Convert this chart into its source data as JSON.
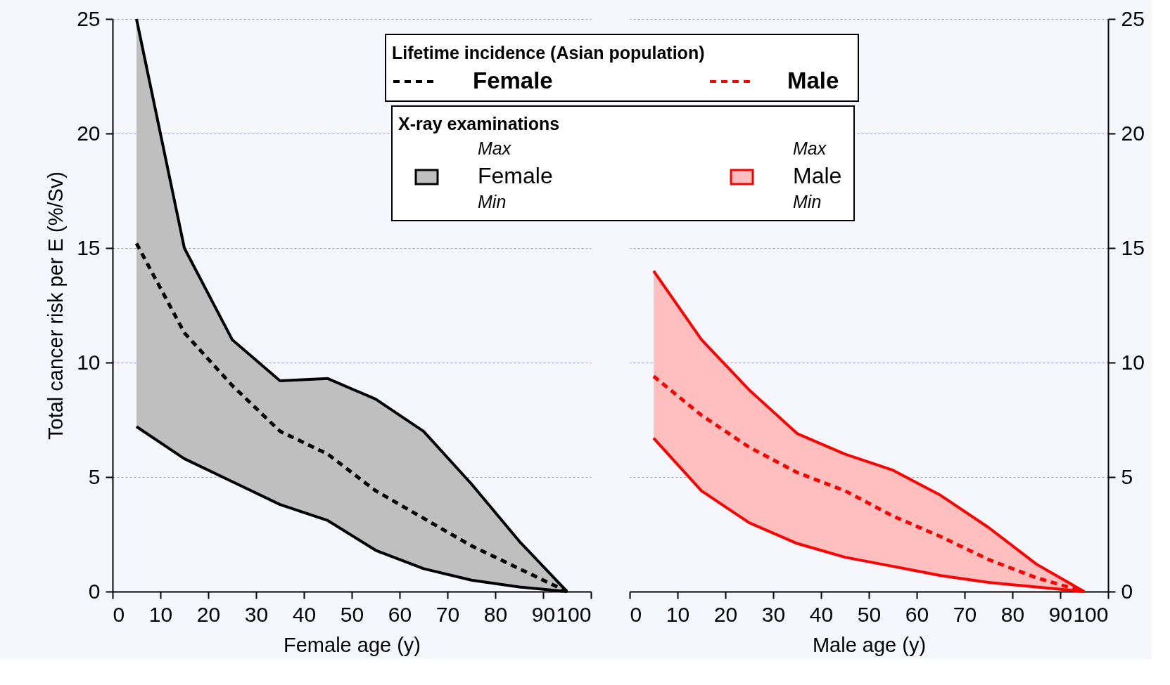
{
  "chart_data": [
    {
      "type": "line",
      "xlabel": "Female age (y)",
      "ylabel": "Total cancer risk per E (%/Sv)",
      "legend_title": "Lifetime incidence (Asian population)",
      "legend": "top",
      "grid": "y",
      "line_style": "dashed",
      "marker": "none",
      "x": [
        5,
        15,
        25,
        35,
        45,
        55,
        65,
        75,
        85,
        95
      ],
      "xlim": [
        0,
        100
      ],
      "xticks": [
        0,
        10,
        20,
        30,
        40,
        50,
        60,
        70,
        80,
        90,
        100
      ],
      "ylim": [
        0,
        25
      ],
      "yticks": [
        0,
        5,
        10,
        15,
        20,
        25
      ],
      "annotations": [
        "Max",
        "Min"
      ],
      "series": [
        {
          "name": "Female",
          "color": "#000000",
          "values": [
            15.2,
            11.3,
            9.0,
            7.0,
            6.0,
            4.4,
            3.2,
            2.0,
            1.0,
            0
          ],
          "lower": [
            7.2,
            5.8,
            4.8,
            3.8,
            3.1,
            1.8,
            1.0,
            0.5,
            0.2,
            0
          ],
          "upper": [
            25,
            15.0,
            11.0,
            9.2,
            9.3,
            8.4,
            7.0,
            4.7,
            2.2,
            0
          ]
        },
        {
          "color": "#000000",
          "line_style": "solid",
          "values": [
            25,
            15.0,
            11.0,
            9.2,
            9.3,
            8.4,
            7.0,
            4.7,
            2.2,
            0
          ]
        },
        {
          "color": "#000000",
          "line_style": "solid",
          "values": [
            7.2,
            5.8,
            4.8,
            3.8,
            3.1,
            1.8,
            1.0,
            0.5,
            0.2,
            0
          ]
        }
      ]
    },
    {
      "type": "line",
      "xlabel": "Male age (y)",
      "legend_title": "X-ray examinations",
      "legend": "top",
      "grid": "y",
      "line_style": "dashed",
      "marker": "none",
      "x": [
        5,
        15,
        25,
        35,
        45,
        55,
        65,
        75,
        85,
        95
      ],
      "xlim": [
        0,
        100
      ],
      "xticks": [
        0,
        10,
        20,
        30,
        40,
        50,
        60,
        70,
        80,
        90,
        100
      ],
      "ylim": [
        0,
        25
      ],
      "yticks": [
        0,
        5,
        10,
        15,
        20,
        25
      ],
      "annotations": [
        "Max",
        "Min"
      ],
      "series": [
        {
          "name": "Male",
          "color": "#ff0000",
          "values": [
            9.4,
            7.7,
            6.3,
            5.2,
            4.4,
            3.3,
            2.4,
            1.4,
            0.6,
            0
          ],
          "lower": [
            6.7,
            4.4,
            3.0,
            2.1,
            1.5,
            1.1,
            0.7,
            0.4,
            0.2,
            0
          ],
          "upper": [
            14.0,
            11.0,
            8.8,
            6.9,
            6.0,
            5.3,
            4.2,
            2.8,
            1.2,
            0
          ]
        },
        {
          "color": "#ff0000",
          "line_style": "solid",
          "values": [
            14.0,
            11.0,
            8.8,
            6.9,
            6.0,
            5.3,
            4.2,
            2.8,
            1.2,
            0
          ]
        },
        {
          "color": "#ff0000",
          "line_style": "solid",
          "values": [
            6.7,
            4.4,
            3.0,
            2.1,
            1.5,
            1.1,
            0.7,
            0.4,
            0.2,
            0
          ]
        }
      ]
    }
  ]
}
